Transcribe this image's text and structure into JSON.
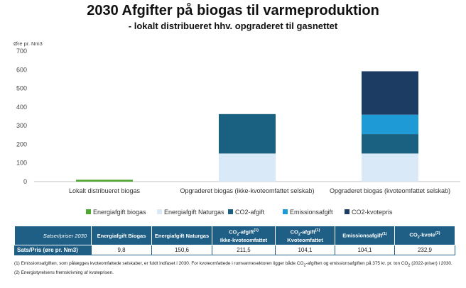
{
  "title": "2030 Afgifter på biogas til varmeproduktion",
  "subtitle": "- lokalt distribueret hhv. opgraderet til gasnettet",
  "chart_data": {
    "type": "bar",
    "stacked": true,
    "ylabel": "Øre pr. Nm3",
    "ylim": [
      0,
      700
    ],
    "yticks": [
      0,
      100,
      200,
      300,
      400,
      500,
      600,
      700
    ],
    "grid": false,
    "legend_position": "bottom",
    "categories": [
      "Lokalt distribueret biogas",
      "Opgraderet biogas (ikke-kvoteomfattet selskab)",
      "Opgraderet biogas (kvoteomfattet selskab)"
    ],
    "series": [
      {
        "name": "Energiafgift biogas",
        "color": "#4ea72e",
        "values": [
          9.8,
          0,
          0
        ]
      },
      {
        "name": "Energiafgift Naturgas",
        "color": "#dae9f8",
        "values": [
          0,
          150.6,
          150.6
        ]
      },
      {
        "name": "CO2-afgift",
        "color": "#1a6080",
        "values": [
          0,
          211.5,
          104.1
        ]
      },
      {
        "name": "Emissionsafgift",
        "color": "#1e9ad6",
        "values": [
          0,
          0,
          104.1
        ]
      },
      {
        "name": "CO2-kvotepris",
        "color": "#1d3c64",
        "values": [
          0,
          0,
          232.9
        ]
      }
    ]
  },
  "table": {
    "corner": "Satser/priser 2030",
    "headers": [
      {
        "main": "Energiafgift Biogas"
      },
      {
        "main": "Energiafgift Naturgas"
      },
      {
        "pre": "CO",
        "sub": "2",
        "post": "-afgift",
        "sup": "(1)",
        "line2": "Ikke-kvoteomfattet"
      },
      {
        "pre": "CO",
        "sub": "2",
        "post": "-afgift",
        "sup": "(1)",
        "line2": "Kvoteomfattet"
      },
      {
        "pre": "Emissionsafgift",
        "sup": "(1)"
      },
      {
        "pre": "CO",
        "sub": "2",
        "post": "-kvote",
        "sup": "(2)"
      }
    ],
    "row_label": "Sats/Pris (øre pr. Nm3)",
    "values": [
      "9,8",
      "150,6",
      "211,5",
      "104,1",
      "104,1",
      "232,9"
    ]
  },
  "footnotes": {
    "note1_a": "(1) Emissionsafgiften, som pålægges kvoteomfattede selskaber, er fuldt indfaset i 2030. For kvoteomfattede i rumvarmesektoren ligger både CO",
    "note1_sub": "2",
    "note1_b": "-afgiften og emissionsafgiften på 375 kr. pr. ton CO",
    "note1_sub2": "2",
    "note1_c": " (2022-priser) i 2030.",
    "note2": "(2) Energistyrelsens fremskrivning af kvoteprisen."
  }
}
